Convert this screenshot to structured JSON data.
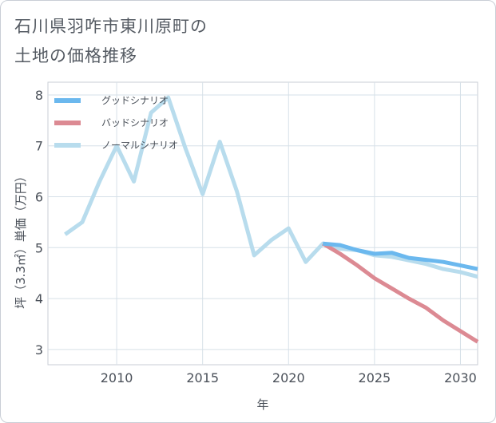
{
  "title_lines": [
    "石川県羽咋市東川原町の",
    "土地の価格推移"
  ],
  "chart_data": {
    "type": "line",
    "title": "石川県羽咋市東川原町の土地の価格推移",
    "xlabel": "年",
    "ylabel": "坪（3.3㎡）単価（万円）",
    "xlim": [
      2006,
      2031
    ],
    "ylim": [
      2.7,
      8.25
    ],
    "xticks": [
      2010,
      2015,
      2020,
      2025,
      2030
    ],
    "yticks": [
      3,
      4,
      5,
      6,
      7,
      8
    ],
    "grid": true,
    "legend_position": "top-left",
    "series": [
      {
        "name": "グッドシナリオ",
        "color": "#6bb8ee",
        "x": [
          2022,
          2023,
          2024,
          2025,
          2026,
          2027,
          2028,
          2029,
          2030,
          2031
        ],
        "y": [
          5.08,
          5.05,
          4.95,
          4.88,
          4.9,
          4.8,
          4.76,
          4.72,
          4.65,
          4.58
        ]
      },
      {
        "name": "バッドシナリオ",
        "color": "#dc8a93",
        "x": [
          2022,
          2023,
          2024,
          2025,
          2026,
          2027,
          2028,
          2029,
          2030,
          2031
        ],
        "y": [
          5.08,
          4.88,
          4.65,
          4.4,
          4.2,
          4.0,
          3.82,
          3.57,
          3.36,
          3.15
        ]
      },
      {
        "name": "ノーマルシナリオ",
        "color": "#b8dced",
        "x": [
          2007,
          2008,
          2009,
          2010,
          2011,
          2012,
          2013,
          2014,
          2015,
          2016,
          2017,
          2018,
          2019,
          2020,
          2021,
          2022,
          2023,
          2024,
          2025,
          2026,
          2027,
          2028,
          2029,
          2030,
          2031
        ],
        "y": [
          5.26,
          5.5,
          6.3,
          7.0,
          6.3,
          7.65,
          7.95,
          6.95,
          6.05,
          7.08,
          6.1,
          4.85,
          5.15,
          5.38,
          4.72,
          5.08,
          4.98,
          4.95,
          4.85,
          4.82,
          4.75,
          4.68,
          4.58,
          4.52,
          4.43
        ]
      }
    ]
  }
}
